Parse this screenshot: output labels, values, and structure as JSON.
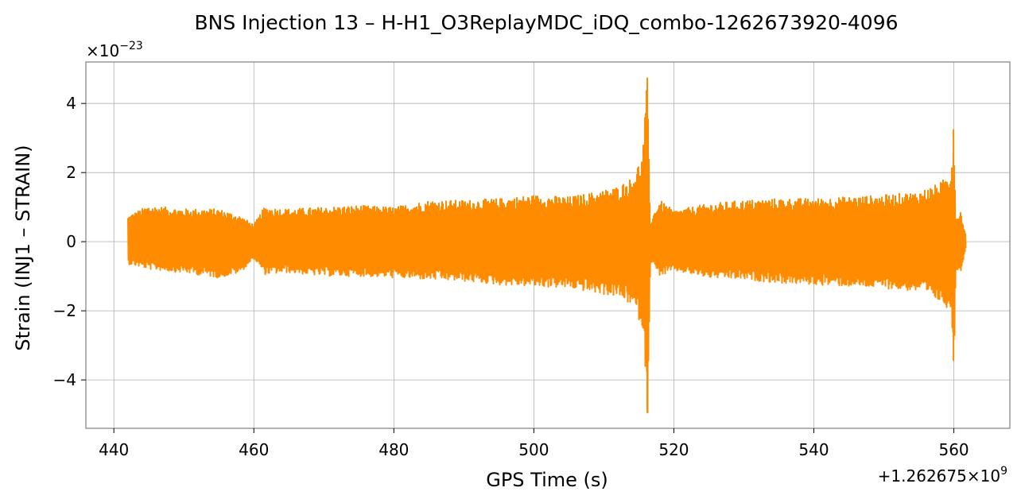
{
  "chart_data": {
    "type": "line",
    "title": "BNS Injection 13 – H-H1_O3ReplayMDC_iDQ_combo-1262673920-4096",
    "xlabel": "GPS Time (s)",
    "ylabel": "Strain (INJ1 – STRAIN)",
    "x_offset_label": "+1.262675×10",
    "x_offset_exponent": "9",
    "y_scale_label": "×10",
    "y_scale_exponent": "−23",
    "xlim": [
      436,
      568
    ],
    "ylim": [
      -5.4,
      5.2
    ],
    "x_ticks": [
      440,
      460,
      480,
      500,
      520,
      540,
      560
    ],
    "x_tick_labels": [
      "440",
      "460",
      "480",
      "500",
      "520",
      "540",
      "560"
    ],
    "y_ticks": [
      -4,
      -2,
      0,
      2,
      4
    ],
    "y_tick_labels": [
      "−4",
      "−2",
      "0",
      "2",
      "4"
    ],
    "grid": true,
    "line_color": "#ff8c00",
    "series": [
      {
        "x_start": 442,
        "x_end": 561.6,
        "envelope": [
          {
            "x": 442.0,
            "upper": 0.75,
            "lower": -0.65
          },
          {
            "x": 445.0,
            "upper": 1.05,
            "lower": -0.8
          },
          {
            "x": 450.0,
            "upper": 0.95,
            "lower": -0.9
          },
          {
            "x": 455.0,
            "upper": 0.95,
            "lower": -1.05
          },
          {
            "x": 458.0,
            "upper": 0.75,
            "lower": -0.9
          },
          {
            "x": 460.0,
            "upper": 0.5,
            "lower": -0.5
          },
          {
            "x": 461.5,
            "upper": 1.0,
            "lower": -0.95
          },
          {
            "x": 465.0,
            "upper": 0.95,
            "lower": -0.9
          },
          {
            "x": 470.0,
            "upper": 1.0,
            "lower": -1.0
          },
          {
            "x": 475.0,
            "upper": 1.05,
            "lower": -1.0
          },
          {
            "x": 480.0,
            "upper": 1.0,
            "lower": -1.05
          },
          {
            "x": 485.0,
            "upper": 1.2,
            "lower": -1.1
          },
          {
            "x": 490.0,
            "upper": 1.2,
            "lower": -1.15
          },
          {
            "x": 495.0,
            "upper": 1.25,
            "lower": -1.25
          },
          {
            "x": 500.0,
            "upper": 1.35,
            "lower": -1.3
          },
          {
            "x": 505.0,
            "upper": 1.3,
            "lower": -1.35
          },
          {
            "x": 509.0,
            "upper": 1.45,
            "lower": -1.5
          },
          {
            "x": 512.0,
            "upper": 1.6,
            "lower": -1.6
          },
          {
            "x": 514.0,
            "upper": 1.85,
            "lower": -1.85
          },
          {
            "x": 515.5,
            "upper": 2.5,
            "lower": -2.5
          },
          {
            "x": 516.2,
            "upper": 4.75,
            "lower": -4.95
          },
          {
            "x": 516.6,
            "upper": 0.6,
            "lower": -0.6
          },
          {
            "x": 518.0,
            "upper": 1.2,
            "lower": -1.0
          },
          {
            "x": 520.0,
            "upper": 0.9,
            "lower": -0.85
          },
          {
            "x": 525.0,
            "upper": 1.1,
            "lower": -1.05
          },
          {
            "x": 530.0,
            "upper": 1.2,
            "lower": -1.1
          },
          {
            "x": 535.0,
            "upper": 1.25,
            "lower": -1.2
          },
          {
            "x": 540.0,
            "upper": 1.25,
            "lower": -1.25
          },
          {
            "x": 545.0,
            "upper": 1.3,
            "lower": -1.3
          },
          {
            "x": 550.0,
            "upper": 1.35,
            "lower": -1.35
          },
          {
            "x": 555.0,
            "upper": 1.45,
            "lower": -1.45
          },
          {
            "x": 558.0,
            "upper": 1.7,
            "lower": -1.75
          },
          {
            "x": 559.5,
            "upper": 2.0,
            "lower": -2.0
          },
          {
            "x": 559.95,
            "upper": 3.25,
            "lower": -3.45
          },
          {
            "x": 560.3,
            "upper": 0.7,
            "lower": -0.8
          },
          {
            "x": 561.0,
            "upper": 0.9,
            "lower": -0.85
          },
          {
            "x": 561.6,
            "upper": 0.25,
            "lower": -0.2
          }
        ]
      }
    ]
  }
}
